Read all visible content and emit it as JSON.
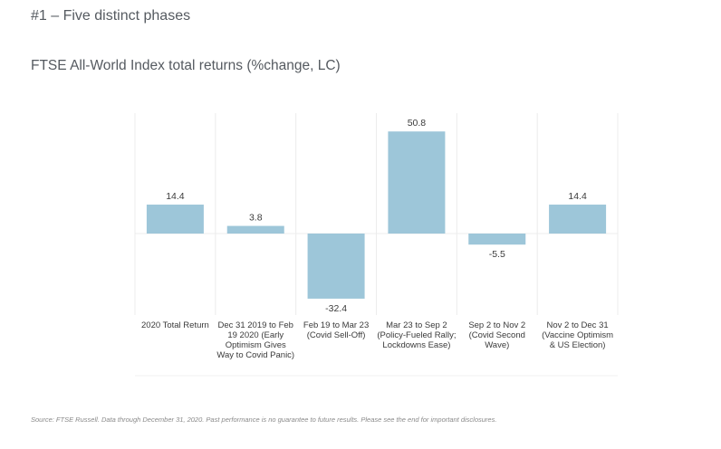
{
  "header": {
    "title": "#1 – Five distinct phases",
    "subtitle": "FTSE All-World Index total returns (%change, LC)"
  },
  "footnote": "Source: FTSE Russell. Data through December 31, 2020. Past performance is no guarantee to future results. Please see the end for important disclosures.",
  "colors": {
    "bar": "#9dc6d9",
    "grid": "#ececec"
  },
  "chart_data": {
    "type": "bar",
    "title": "FTSE All-World Index total returns (%change, LC)",
    "xlabel": "",
    "ylabel": "",
    "ylim": [
      -40,
      60
    ],
    "grid": "vertical separators",
    "legend": "none",
    "categories": [
      [
        "2020 Total Return"
      ],
      [
        "Dec 31 2019 to Feb",
        "19 2020 (Early",
        "Optimism Gives",
        "Way to Covid Panic)"
      ],
      [
        "Feb 19 to Mar 23",
        "(Covid Sell-Off)"
      ],
      [
        "Mar 23 to Sep 2",
        "(Policy-Fueled Rally;",
        "Lockdowns Ease)"
      ],
      [
        "Sep 2 to Nov 2",
        "(Covid Second",
        "Wave)"
      ],
      [
        "Nov 2 to Dec 31",
        "(Vaccine Optimism",
        "& US Election)"
      ]
    ],
    "values": [
      14.4,
      3.8,
      -32.4,
      50.8,
      -5.5,
      14.4
    ],
    "data_labels": [
      "14.4",
      "3.8",
      "-32.4",
      "50.8",
      "-5.5",
      "14.4"
    ]
  }
}
